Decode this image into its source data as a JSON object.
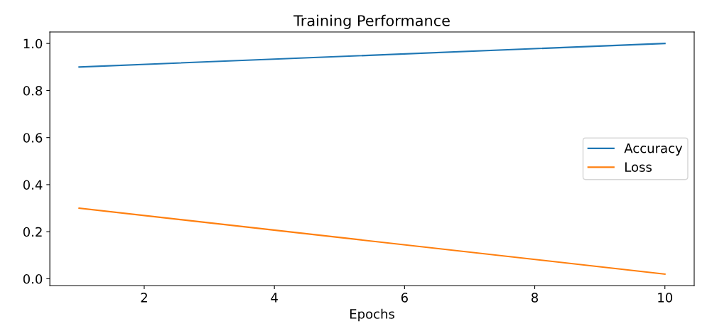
{
  "chart_data": {
    "type": "line",
    "title": "Training Performance",
    "xlabel": "Epochs",
    "x": [
      1,
      10
    ],
    "series": [
      {
        "name": "Accuracy",
        "color": "#1f77b4",
        "values": [
          0.9,
          1.0
        ]
      },
      {
        "name": "Loss",
        "color": "#ff7f0e",
        "values": [
          0.3,
          0.02
        ]
      }
    ],
    "xlim": [
      0.55,
      10.45
    ],
    "xticks": [
      2,
      4,
      6,
      8,
      10
    ],
    "ylim": [
      -0.029,
      1.049
    ],
    "yticks": [
      {
        "value": 0,
        "label": "0.0"
      },
      {
        "value": 0.2,
        "label": "0.2"
      },
      {
        "value": 0.4,
        "label": "0.4"
      },
      {
        "value": 0.6,
        "label": "0.6"
      },
      {
        "value": 0.8,
        "label": "0.8"
      },
      {
        "value": 1,
        "label": "1.0"
      }
    ],
    "legend": "center right",
    "grid": false
  }
}
